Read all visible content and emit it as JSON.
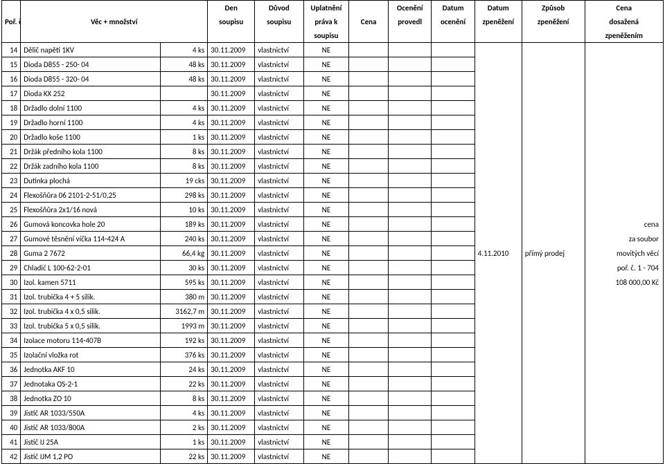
{
  "header": {
    "col1": "Poř. č.",
    "col2": "Věc + množství",
    "col3a": "Den",
    "col3b": "soupisu",
    "col4a": "Důvod",
    "col4b": "soupisu",
    "col5a": "Uplatnění",
    "col5b": "práva k",
    "col5c": "soupisu",
    "col6": "Cena",
    "col7a": "Ocenění",
    "col7b": "provedl",
    "col8a": "Datum",
    "col8b": "ocenění",
    "col9a": "Datum",
    "col9b": "zpeněžení",
    "col10a": "Způsob",
    "col10b": "zpeněžení",
    "col11a": "Cena",
    "col11b": "dosažená",
    "col11c": "zpeněžením"
  },
  "rows": [
    {
      "n": "14",
      "item": "Dělič napětí 1KV",
      "qty": "4 ks",
      "date": "30.11.2009",
      "reason": "vlastnictví",
      "upl": "NE"
    },
    {
      "n": "15",
      "item": "Dioda D855 - 250- 04",
      "qty": "48 ks",
      "date": "30.11.2009",
      "reason": "vlastnictví",
      "upl": "NE"
    },
    {
      "n": "16",
      "item": "Dioda D855 - 320- 04",
      "qty": "48 ks",
      "date": "30.11.2009",
      "reason": "vlastnictví",
      "upl": "NE"
    },
    {
      "n": "17",
      "item": "Dioda KX 252",
      "qty": "",
      "date": "30.11.2009",
      "reason": "vlastnictví",
      "upl": "NE"
    },
    {
      "n": "18",
      "item": "Držadlo dolní 1100",
      "qty": "4 ks",
      "date": "30.11.2009",
      "reason": "vlastnictví",
      "upl": "NE"
    },
    {
      "n": "19",
      "item": "Držadlo horní 1100",
      "qty": "4 ks",
      "date": "30.11.2009",
      "reason": "vlastnictví",
      "upl": "NE"
    },
    {
      "n": "20",
      "item": "Držadlo koše 1100",
      "qty": "1 ks",
      "date": "30.11.2009",
      "reason": "vlastnictví",
      "upl": "NE"
    },
    {
      "n": "21",
      "item": "Držák předního kola 1100",
      "qty": "8 ks",
      "date": "30.11.2009",
      "reason": "vlastnictví",
      "upl": "NE"
    },
    {
      "n": "22",
      "item": "Držák zadního kola 1100",
      "qty": "8 ks",
      "date": "30.11.2009",
      "reason": "vlastnictví",
      "upl": "NE"
    },
    {
      "n": "23",
      "item": "Dutinka plochá",
      "qty": "19 cks",
      "date": "30.11.2009",
      "reason": "vlastnictví",
      "upl": "NE"
    },
    {
      "n": "24",
      "item": "Flexošňůra 06 2101-2-51/0,25",
      "qty": "298 ks",
      "date": "30.11.2009",
      "reason": "vlastnictví",
      "upl": "NE"
    },
    {
      "n": "25",
      "item": "Flexošňůra 2x1/16 nová",
      "qty": "10 ks",
      "date": "30.11.2009",
      "reason": "vlastnictví",
      "upl": "NE"
    },
    {
      "n": "26",
      "item": "Gumová koncovka hole 20",
      "qty": "189 ks",
      "date": "30.11.2009",
      "reason": "vlastnictví",
      "upl": "NE"
    },
    {
      "n": "27",
      "item": "Gumové těsnění víčka 114-424 A",
      "qty": "240 ks",
      "date": "30.11.2009",
      "reason": "vlastnictví",
      "upl": "NE"
    },
    {
      "n": "28",
      "item": "Guma 2 7672",
      "qty": "66,4 kg",
      "date": "30.11.2009",
      "reason": "vlastnictví",
      "upl": "NE"
    },
    {
      "n": "29",
      "item": "Chladič L 100-62-2-01",
      "qty": "30 ks",
      "date": "30.11.2009",
      "reason": "vlastnictví",
      "upl": "NE"
    },
    {
      "n": "30",
      "item": "Izol. kamen 5711",
      "qty": "595 ks",
      "date": "30.11.2009",
      "reason": "vlastnictví",
      "upl": "NE"
    },
    {
      "n": "31",
      "item": "Izol. trubička 4 + 5 silik.",
      "qty": "380 m",
      "date": "30.11.2009",
      "reason": "vlastnictví",
      "upl": "NE"
    },
    {
      "n": "32",
      "item": "Izol. trubička 4 x 0,5 silik.",
      "qty": "3162,7 m",
      "date": "30.11.2009",
      "reason": "vlastnictví",
      "upl": "NE"
    },
    {
      "n": "33",
      "item": "Izol. trubička 5 x 0,5 silik.",
      "qty": "1993 m",
      "date": "30.11.2009",
      "reason": "vlastnictví",
      "upl": "NE"
    },
    {
      "n": "34",
      "item": "Izolace motoru 114-407B",
      "qty": "192 ks",
      "date": "30.11.2009",
      "reason": "vlastnictví",
      "upl": "NE"
    },
    {
      "n": "35",
      "item": "Izolační vložka rot",
      "qty": "376 ks",
      "date": "30.11.2009",
      "reason": "vlastnictví",
      "upl": "NE"
    },
    {
      "n": "36",
      "item": "Jednotka AKF 10",
      "qty": "24 ks",
      "date": "30.11.2009",
      "reason": "vlastnictví",
      "upl": "NE"
    },
    {
      "n": "37",
      "item": "Jednotaka OS-2-1",
      "qty": "22 ks",
      "date": "30.11.2009",
      "reason": "vlastnictví",
      "upl": "NE"
    },
    {
      "n": "38",
      "item": "Jednotka ZO 10",
      "qty": "8 ks",
      "date": "30.11.2009",
      "reason": "vlastnictví",
      "upl": "NE"
    },
    {
      "n": "39",
      "item": "Jistič AR 1033/550A",
      "qty": "4 ks",
      "date": "30.11.2009",
      "reason": "vlastnictví",
      "upl": "NE"
    },
    {
      "n": "40",
      "item": "Jistič AR 1033/800A",
      "qty": "2 ks",
      "date": "30.11.2009",
      "reason": "vlastnictví",
      "upl": "NE"
    },
    {
      "n": "41",
      "item": "Jistič IJ 25A",
      "qty": "1 ks",
      "date": "30.11.2009",
      "reason": "vlastnictví",
      "upl": "NE"
    },
    {
      "n": "42",
      "item": "Jistič IJM 1,2 PO",
      "qty": "22 ks",
      "date": "30.11.2009",
      "reason": "vlastnictví",
      "upl": "NE"
    }
  ],
  "side": {
    "line1": "cena",
    "line2": "za soubor",
    "line3_date": "4.11.2010",
    "line3_method": "přímý prodej",
    "line3_text": "movitých věcí",
    "line4": "poř. č. 1 - 704",
    "line5": "108 000,00 Kč"
  }
}
